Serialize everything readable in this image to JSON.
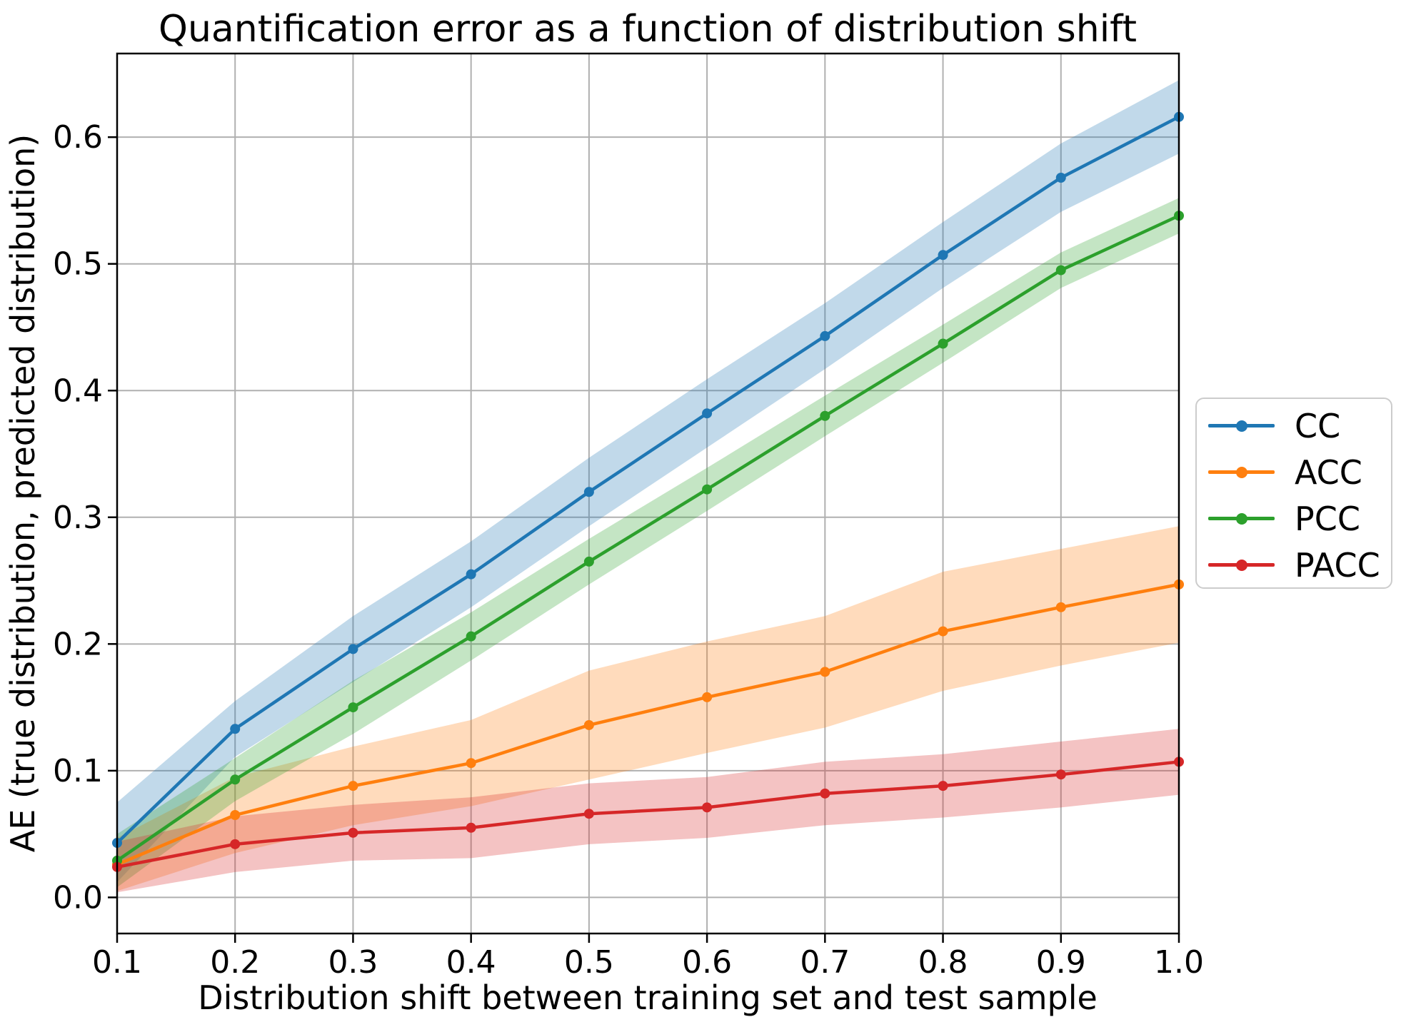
{
  "chart_data": {
    "type": "line",
    "title": "Quantification error as a function of distribution shift",
    "xlabel": "Distribution shift between training set and test sample",
    "ylabel": "AE (true distribution, predicted distribution)",
    "xlim": [
      0.1,
      1.0
    ],
    "ylim": [
      -0.0285,
      0.666
    ],
    "grid": true,
    "grid_color": "#b0b0b0",
    "spine_color": "#000000",
    "background_color": "#ffffff",
    "legend_position": "outside-right",
    "xticks": {
      "values": [
        0.1,
        0.2,
        0.3,
        0.4,
        0.5,
        0.6,
        0.7,
        0.8,
        0.9,
        1.0
      ],
      "labels": [
        "0.1",
        "0.2",
        "0.3",
        "0.4",
        "0.5",
        "0.6",
        "0.7",
        "0.8",
        "0.9",
        "1.0"
      ]
    },
    "yticks": {
      "values": [
        0.0,
        0.1,
        0.2,
        0.3,
        0.4,
        0.5,
        0.6
      ],
      "labels": [
        "0.0",
        "0.1",
        "0.2",
        "0.3",
        "0.4",
        "0.5",
        "0.6"
      ]
    },
    "x": [
      0.1,
      0.2,
      0.3,
      0.4,
      0.5,
      0.6,
      0.7,
      0.8,
      0.9,
      1.0
    ],
    "series": [
      {
        "name": "CC",
        "color": "#1f77b4",
        "values": [
          0.043,
          0.133,
          0.196,
          0.255,
          0.32,
          0.382,
          0.443,
          0.507,
          0.568,
          0.616
        ],
        "band_lower": [
          0.012,
          0.111,
          0.17,
          0.229,
          0.293,
          0.355,
          0.417,
          0.481,
          0.541,
          0.587
        ],
        "band_upper": [
          0.075,
          0.155,
          0.222,
          0.281,
          0.347,
          0.409,
          0.469,
          0.533,
          0.595,
          0.645
        ]
      },
      {
        "name": "ACC",
        "color": "#ff7f0e",
        "values": [
          0.026,
          0.065,
          0.088,
          0.106,
          0.136,
          0.158,
          0.178,
          0.21,
          0.229,
          0.247
        ],
        "band_lower": [
          0.005,
          0.035,
          0.057,
          0.072,
          0.093,
          0.114,
          0.134,
          0.163,
          0.183,
          0.201
        ],
        "band_upper": [
          0.047,
          0.095,
          0.119,
          0.14,
          0.179,
          0.202,
          0.222,
          0.257,
          0.275,
          0.293
        ]
      },
      {
        "name": "PCC",
        "color": "#2ca02c",
        "values": [
          0.029,
          0.093,
          0.15,
          0.206,
          0.265,
          0.322,
          0.38,
          0.437,
          0.495,
          0.538
        ],
        "band_lower": [
          0.008,
          0.076,
          0.129,
          0.187,
          0.247,
          0.305,
          0.364,
          0.422,
          0.481,
          0.524
        ],
        "band_upper": [
          0.05,
          0.11,
          0.171,
          0.225,
          0.283,
          0.339,
          0.396,
          0.452,
          0.509,
          0.552
        ]
      },
      {
        "name": "PACC",
        "color": "#d62728",
        "values": [
          0.024,
          0.042,
          0.051,
          0.055,
          0.066,
          0.071,
          0.082,
          0.088,
          0.097,
          0.107
        ],
        "band_lower": [
          0.004,
          0.02,
          0.029,
          0.031,
          0.042,
          0.047,
          0.057,
          0.063,
          0.071,
          0.081
        ],
        "band_upper": [
          0.044,
          0.064,
          0.073,
          0.079,
          0.09,
          0.095,
          0.107,
          0.113,
          0.123,
          0.133
        ]
      }
    ]
  }
}
